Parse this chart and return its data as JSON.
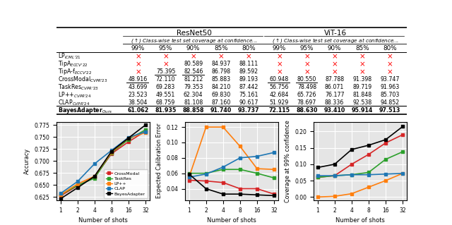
{
  "table": {
    "resnet50": {
      "99": [
        null,
        null,
        null,
        48.916,
        43.699,
        23.523,
        38.504,
        61.062
      ],
      "95": [
        null,
        null,
        75.395,
        72.11,
        69.283,
        49.551,
        68.759,
        81.935
      ],
      "90": [
        null,
        80.589,
        82.546,
        81.212,
        79.353,
        62.304,
        81.108,
        88.858
      ],
      "85": [
        null,
        84.937,
        86.798,
        85.883,
        84.21,
        69.83,
        87.16,
        91.74
      ],
      "80": [
        null,
        88.111,
        89.592,
        89.193,
        87.442,
        75.161,
        90.617,
        93.737
      ]
    },
    "vit16": {
      "99": [
        null,
        null,
        null,
        60.948,
        56.756,
        42.684,
        51.929,
        72.115
      ],
      "95": [
        null,
        null,
        null,
        80.55,
        78.498,
        65.726,
        78.697,
        88.63
      ],
      "90": [
        null,
        null,
        null,
        87.788,
        86.071,
        76.177,
        88.336,
        93.41
      ],
      "85": [
        null,
        null,
        null,
        91.398,
        89.719,
        81.848,
        92.538,
        95.914
      ],
      "80": [
        null,
        null,
        null,
        93.747,
        91.963,
        85.703,
        94.852,
        97.513
      ]
    },
    "underlines_resnet50": [
      [
        3,
        0
      ],
      [
        2,
        1
      ],
      [
        2,
        2
      ]
    ],
    "underlines_vit16": [
      [
        3,
        0
      ],
      [
        3,
        1
      ]
    ]
  },
  "shots": [
    1,
    2,
    4,
    8,
    16,
    32
  ],
  "accuracy": {
    "CrossModal": [
      0.627,
      0.648,
      0.666,
      0.715,
      0.74,
      0.762
    ],
    "TaskRes": [
      0.629,
      0.649,
      0.664,
      0.717,
      0.745,
      0.765
    ],
    "LP++": [
      0.629,
      0.652,
      0.668,
      0.718,
      0.748,
      0.759
    ],
    "CLAP": [
      0.632,
      0.657,
      0.694,
      0.722,
      0.749,
      0.761
    ],
    "BayesAdapter": [
      0.621,
      0.644,
      0.668,
      0.72,
      0.748,
      0.775
    ]
  },
  "ece": {
    "CrossModal": [
      0.051,
      0.05,
      0.048,
      0.04,
      0.04,
      0.033
    ],
    "TaskRes": [
      0.06,
      0.06,
      0.065,
      0.065,
      0.06,
      0.054
    ],
    "LP++": [
      0.055,
      0.12,
      0.12,
      0.095,
      0.066,
      0.065
    ],
    "CLAP": [
      0.055,
      0.059,
      0.068,
      0.08,
      0.082,
      0.087
    ],
    "BayesAdapter": [
      0.059,
      0.04,
      0.033,
      0.033,
      0.032,
      0.031
    ]
  },
  "coverage": {
    "CrossModal": [
      0.06,
      0.065,
      0.1,
      0.13,
      0.165,
      0.19
    ],
    "TaskRes": [
      0.06,
      0.065,
      0.068,
      0.075,
      0.115,
      0.138
    ],
    "LP++": [
      0.0,
      0.002,
      0.01,
      0.03,
      0.05,
      0.072
    ],
    "CLAP": [
      0.065,
      0.065,
      0.068,
      0.068,
      0.07,
      0.072
    ],
    "BayesAdapter": [
      0.09,
      0.1,
      0.145,
      0.158,
      0.175,
      0.215
    ]
  },
  "colors": {
    "CrossModal": "#d62728",
    "TaskRes": "#2ca02c",
    "LP++": "#ff7f0e",
    "CLAP": "#1f77b4",
    "BayesAdapter": "#000000"
  },
  "x_ticks": [
    1,
    2,
    4,
    8,
    16,
    32
  ],
  "x_tick_labels": [
    "1",
    "2",
    "4",
    "8",
    "16",
    "32"
  ]
}
